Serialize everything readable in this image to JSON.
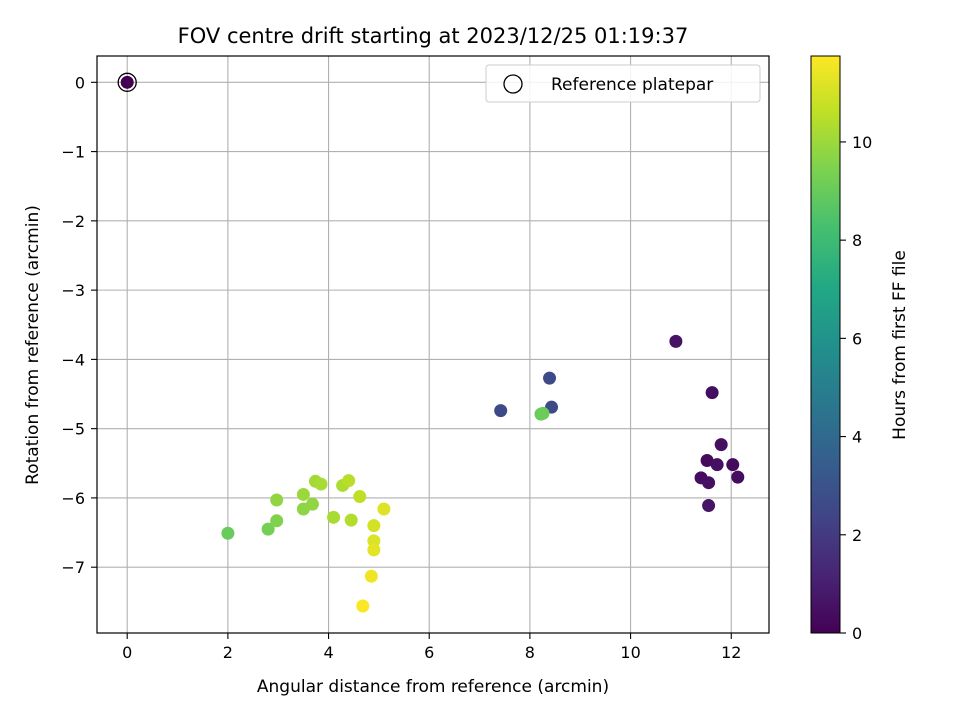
{
  "chart_data": {
    "type": "scatter",
    "title": "FOV centre drift starting at 2023/12/25 01:19:37",
    "xlabel": "Angular distance from reference (arcmin)",
    "ylabel": "Rotation from reference (arcmin)",
    "xlim": [
      -0.6,
      12.75
    ],
    "ylim": [
      -7.95,
      0.38
    ],
    "xticks": [
      0,
      2,
      4,
      6,
      8,
      10,
      12
    ],
    "yticks": [
      0,
      -1,
      -2,
      -3,
      -4,
      -5,
      -6,
      -7
    ],
    "grid": true,
    "colorbar": {
      "label": "Hours from first FF file",
      "colormap": "viridis",
      "range": [
        0,
        11.75
      ],
      "ticks": [
        0,
        2,
        4,
        6,
        8,
        10
      ]
    },
    "legend": {
      "placement": "top-right",
      "entries": [
        "Reference platepar"
      ]
    },
    "reference_point": {
      "x": 0,
      "y": 0
    },
    "points": [
      {
        "x": 0.0,
        "y": 0.0,
        "hours": 0.0
      },
      {
        "x": 10.9,
        "y": -3.74,
        "hours": 0.6
      },
      {
        "x": 11.62,
        "y": -4.48,
        "hours": 0.4
      },
      {
        "x": 11.8,
        "y": -5.23,
        "hours": 0.5
      },
      {
        "x": 11.52,
        "y": -5.46,
        "hours": 0.3
      },
      {
        "x": 11.72,
        "y": -5.52,
        "hours": 0.5
      },
      {
        "x": 12.03,
        "y": -5.52,
        "hours": 0.3
      },
      {
        "x": 11.4,
        "y": -5.71,
        "hours": 0.4
      },
      {
        "x": 11.55,
        "y": -5.78,
        "hours": 0.5
      },
      {
        "x": 12.13,
        "y": -5.7,
        "hours": 0.4
      },
      {
        "x": 11.55,
        "y": -6.11,
        "hours": 0.6
      },
      {
        "x": 7.42,
        "y": -4.74,
        "hours": 2.6
      },
      {
        "x": 8.39,
        "y": -4.27,
        "hours": 2.6
      },
      {
        "x": 8.43,
        "y": -4.69,
        "hours": 2.6
      },
      {
        "x": 8.22,
        "y": -4.79,
        "hours": 9.0
      },
      {
        "x": 8.26,
        "y": -4.78,
        "hours": 9.1
      },
      {
        "x": 2.0,
        "y": -6.51,
        "hours": 9.0
      },
      {
        "x": 2.8,
        "y": -6.45,
        "hours": 9.3
      },
      {
        "x": 2.97,
        "y": -6.03,
        "hours": 9.8
      },
      {
        "x": 2.97,
        "y": -6.33,
        "hours": 9.5
      },
      {
        "x": 3.5,
        "y": -5.95,
        "hours": 10.0
      },
      {
        "x": 3.5,
        "y": -6.16,
        "hours": 9.7
      },
      {
        "x": 3.68,
        "y": -6.09,
        "hours": 9.8
      },
      {
        "x": 3.74,
        "y": -5.76,
        "hours": 10.1
      },
      {
        "x": 3.85,
        "y": -5.8,
        "hours": 10.2
      },
      {
        "x": 4.1,
        "y": -6.28,
        "hours": 10.2
      },
      {
        "x": 4.28,
        "y": -5.82,
        "hours": 10.3
      },
      {
        "x": 4.4,
        "y": -5.75,
        "hours": 10.5
      },
      {
        "x": 4.45,
        "y": -6.32,
        "hours": 10.4
      },
      {
        "x": 4.62,
        "y": -5.98,
        "hours": 10.6
      },
      {
        "x": 4.9,
        "y": -6.4,
        "hours": 11.0
      },
      {
        "x": 4.9,
        "y": -6.62,
        "hours": 11.1
      },
      {
        "x": 4.9,
        "y": -6.75,
        "hours": 11.3
      },
      {
        "x": 5.1,
        "y": -6.16,
        "hours": 11.2
      },
      {
        "x": 4.85,
        "y": -7.13,
        "hours": 11.5
      },
      {
        "x": 4.68,
        "y": -7.56,
        "hours": 11.7
      }
    ]
  }
}
